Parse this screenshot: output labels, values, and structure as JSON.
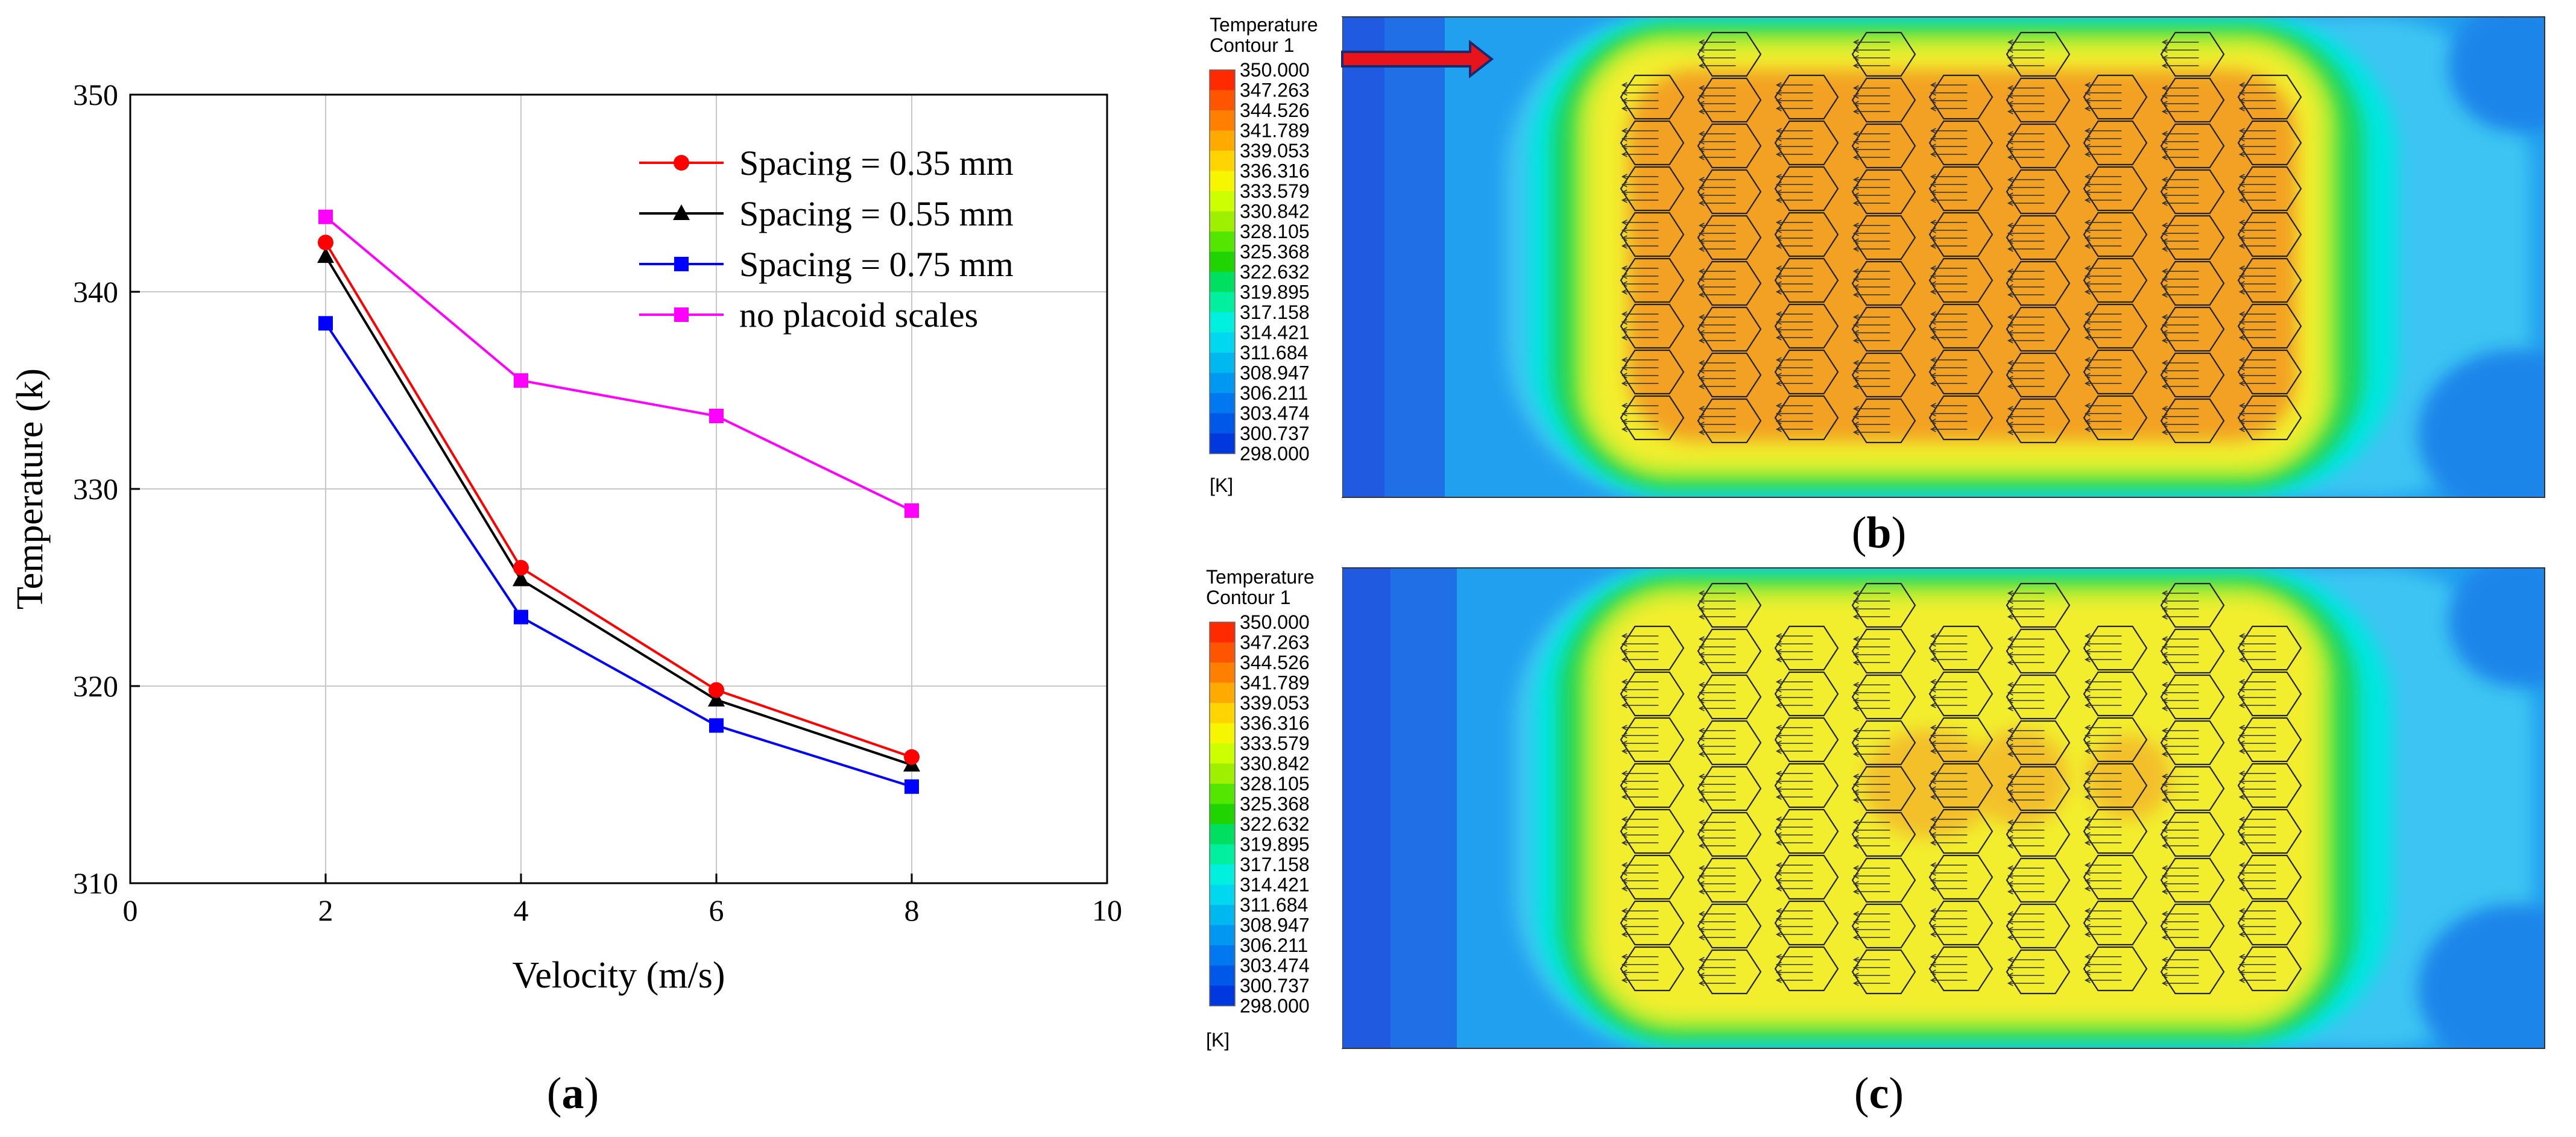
{
  "chart_data": [
    {
      "type": "line",
      "title": "",
      "xlabel": "Velocity (m/s)",
      "ylabel": "Temperature (k)",
      "xlim": [
        0,
        10
      ],
      "ylim": [
        310,
        350
      ],
      "xticks": [
        0,
        2,
        4,
        6,
        8,
        10
      ],
      "yticks": [
        310,
        320,
        330,
        340,
        350
      ],
      "grid": true,
      "legend_position": "top-right",
      "x": [
        2,
        4,
        6,
        8
      ],
      "series": [
        {
          "name": "Spacing = 0.35 mm",
          "color": "#ff0000",
          "marker": "circle",
          "values": [
            342.5,
            326.0,
            319.8,
            316.4
          ]
        },
        {
          "name": "Spacing = 0.55 mm",
          "color": "#000000",
          "marker": "triangle",
          "values": [
            341.8,
            325.4,
            319.3,
            316.0
          ]
        },
        {
          "name": "Spacing = 0.75 mm",
          "color": "#0000ff",
          "marker": "square",
          "values": [
            338.4,
            323.5,
            318.0,
            314.9
          ]
        },
        {
          "name": "no  placoid scales",
          "color": "#ff00ff",
          "marker": "square",
          "values": [
            343.8,
            335.5,
            333.7,
            328.9
          ]
        }
      ],
      "panel_label": "a"
    }
  ],
  "contours": [
    {
      "panel_label": "b",
      "legend_title_1": "Temperature",
      "legend_title_2": "Contour 1",
      "unit": "[K]",
      "levels": [
        "350.000",
        "347.263",
        "344.526",
        "341.789",
        "339.053",
        "336.316",
        "333.579",
        "330.842",
        "328.105",
        "325.368",
        "322.632",
        "319.895",
        "317.158",
        "314.421",
        "311.684",
        "308.947",
        "306.211",
        "303.474",
        "300.737",
        "298.000"
      ],
      "has_flow_arrow": true,
      "interior": "orange"
    },
    {
      "panel_label": "c",
      "legend_title_1": "Temperature",
      "legend_title_2": "Contour 1",
      "unit": "[K]",
      "levels": [
        "350.000",
        "347.263",
        "344.526",
        "341.789",
        "339.053",
        "336.316",
        "333.579",
        "330.842",
        "328.105",
        "325.368",
        "322.632",
        "319.895",
        "317.158",
        "314.421",
        "311.684",
        "308.947",
        "306.211",
        "303.474",
        "300.737",
        "298.000"
      ],
      "has_flow_arrow": false,
      "interior": "yellow"
    }
  ],
  "palette": [
    "#ff2a00",
    "#ff5500",
    "#ff7f00",
    "#ffaa00",
    "#ffd400",
    "#f6f600",
    "#ccff00",
    "#9ff000",
    "#55e600",
    "#1fd400",
    "#00e060",
    "#00f0a0",
    "#00f0e0",
    "#00d8f0",
    "#00b8f0",
    "#0098f0",
    "#0078f0",
    "#0058e8",
    "#0038e0",
    "#0018d8"
  ],
  "interior_colors": {
    "orange": "#f3a124",
    "yellow": "#f2ee2e"
  }
}
